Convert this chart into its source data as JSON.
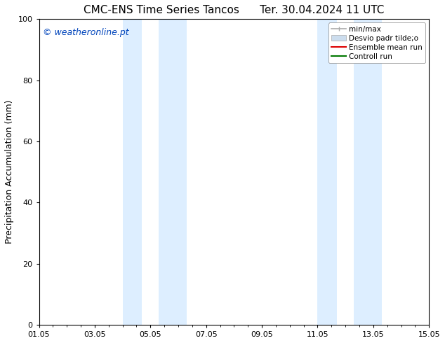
{
  "title_left": "CMC-ENS Time Series Tancos",
  "title_right": "Ter. 30.04.2024 11 UTC",
  "ylabel": "Precipitation Accumulation (mm)",
  "ylim": [
    0,
    100
  ],
  "yticks": [
    0,
    20,
    40,
    60,
    80,
    100
  ],
  "xtick_labels": [
    "01.05",
    "03.05",
    "05.05",
    "07.05",
    "09.05",
    "11.05",
    "13.05",
    "15.05"
  ],
  "xtick_positions": [
    0,
    2,
    4,
    6,
    8,
    10,
    12,
    14
  ],
  "shaded_bands": [
    {
      "x_start": 3.0,
      "x_end": 3.7,
      "color": "#ddeeff"
    },
    {
      "x_start": 4.3,
      "x_end": 5.3,
      "color": "#ddeeff"
    },
    {
      "x_start": 10.0,
      "x_end": 10.7,
      "color": "#ddeeff"
    },
    {
      "x_start": 11.3,
      "x_end": 12.3,
      "color": "#ddeeff"
    }
  ],
  "watermark_text": "© weatheronline.pt",
  "watermark_color": "#0044bb",
  "watermark_fontsize": 9,
  "legend_entries": [
    {
      "label": "min/max",
      "color": "#aaaaaa",
      "lw": 1.2,
      "type": "errorbar"
    },
    {
      "label": "Desvio padr tilde;o",
      "color": "#ccddee",
      "lw": 6,
      "type": "band"
    },
    {
      "label": "Ensemble mean run",
      "color": "#dd0000",
      "lw": 1.5,
      "type": "line"
    },
    {
      "label": "Controll run",
      "color": "#007700",
      "lw": 1.5,
      "type": "line"
    }
  ],
  "background_color": "#ffffff",
  "plot_bg_color": "#ffffff",
  "title_fontsize": 11,
  "axis_label_fontsize": 9,
  "tick_fontsize": 8,
  "legend_fontsize": 7.5
}
